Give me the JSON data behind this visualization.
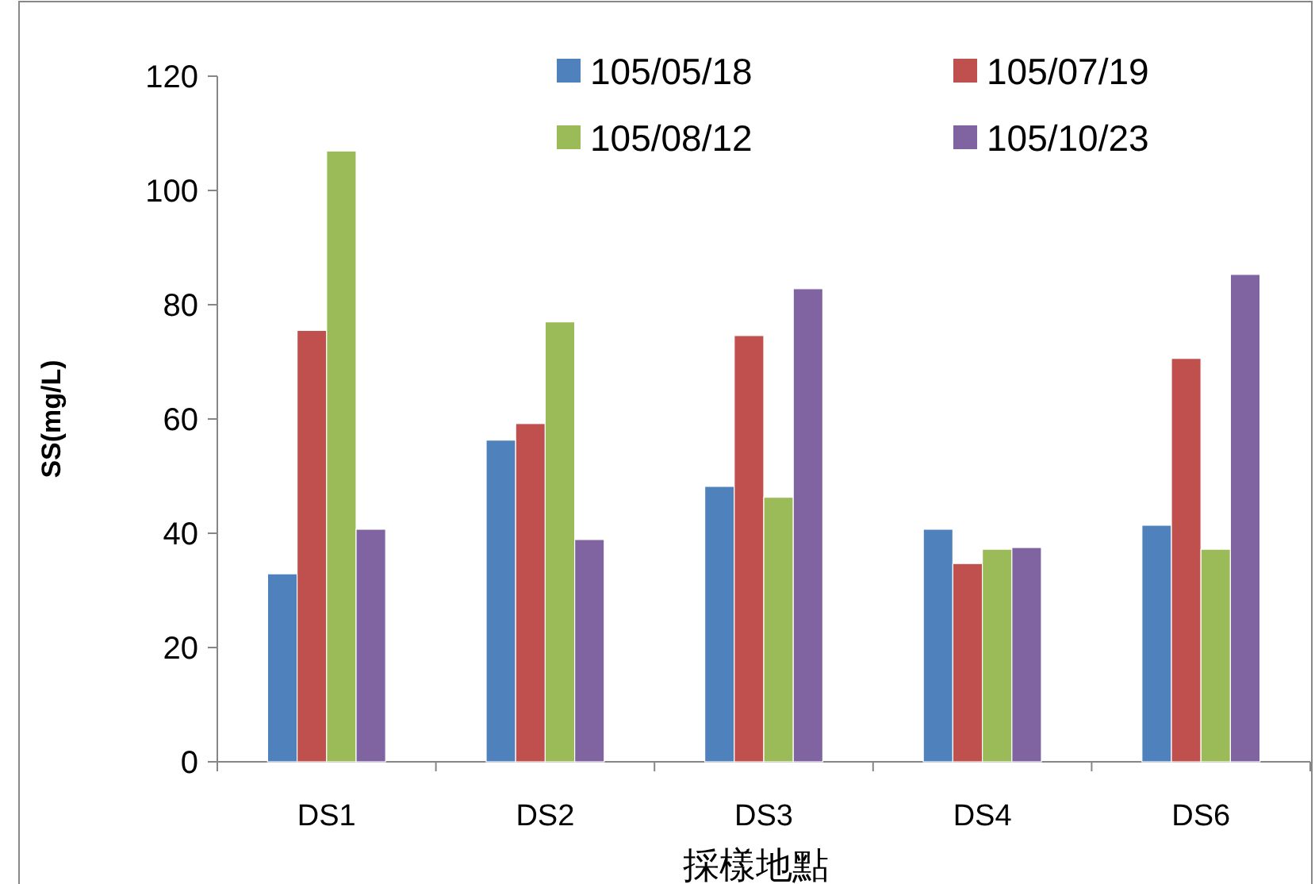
{
  "chart_data": {
    "type": "bar",
    "xlabel": "採樣地點",
    "ylabel": "SS(mg/L)",
    "categories": [
      "DS1",
      "DS2",
      "DS3",
      "DS4",
      "DS6"
    ],
    "series": [
      {
        "name": "105/05/18",
        "color": "#4f81bd",
        "values": [
          32.9,
          56.3,
          48.2,
          40.7,
          41.4
        ]
      },
      {
        "name": "105/07/19",
        "color": "#c0504d",
        "values": [
          75.5,
          59.2,
          74.6,
          34.7,
          70.6
        ]
      },
      {
        "name": "105/08/12",
        "color": "#9bbb59",
        "values": [
          106.9,
          77.0,
          46.3,
          37.2,
          37.2
        ]
      },
      {
        "name": "105/10/23",
        "color": "#8064a2",
        "values": [
          40.7,
          38.9,
          82.8,
          37.5,
          85.3
        ]
      }
    ],
    "ylim": [
      0,
      120
    ],
    "yticks": [
      0,
      20,
      40,
      60,
      80,
      100,
      120
    ],
    "legend": "top"
  }
}
